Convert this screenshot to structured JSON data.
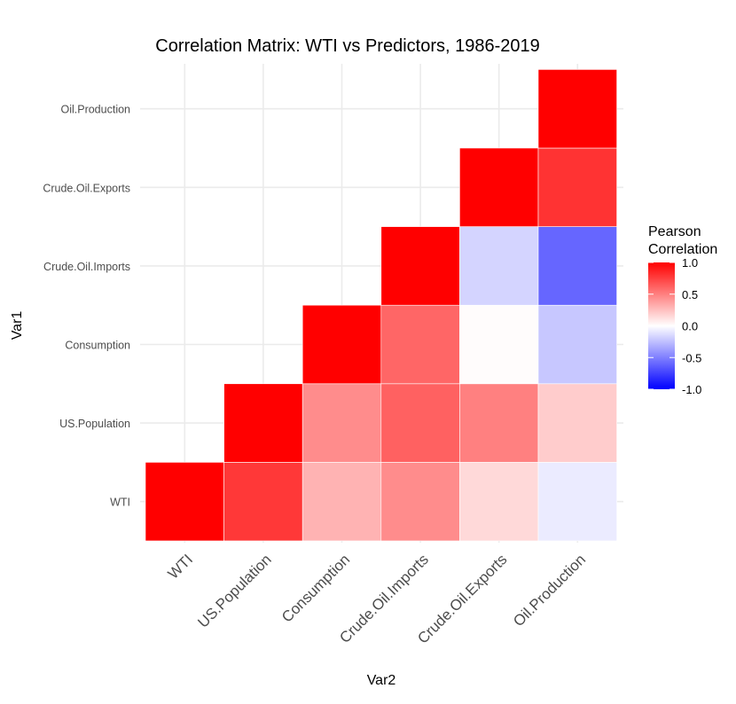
{
  "chart_data": {
    "type": "heatmap",
    "title": "Correlation Matrix: WTI vs Predictors, 1986-2019",
    "xlabel": "Var2",
    "ylabel": "Var1",
    "x_categories": [
      "WTI",
      "US.Population",
      "Consumption",
      "Crude.Oil.Imports",
      "Crude.Oil.Exports",
      "Oil.Production"
    ],
    "y_categories": [
      "WTI",
      "US.Population",
      "Consumption",
      "Crude.Oil.Imports",
      "Crude.Oil.Exports",
      "Oil.Production"
    ],
    "cells": [
      {
        "x": "WTI",
        "y": "WTI",
        "value": 1.0
      },
      {
        "x": "US.Population",
        "y": "WTI",
        "value": 0.78
      },
      {
        "x": "Consumption",
        "y": "WTI",
        "value": 0.3
      },
      {
        "x": "Crude.Oil.Imports",
        "y": "WTI",
        "value": 0.45
      },
      {
        "x": "Crude.Oil.Exports",
        "y": "WTI",
        "value": 0.15
      },
      {
        "x": "Oil.Production",
        "y": "WTI",
        "value": -0.08
      },
      {
        "x": "US.Population",
        "y": "US.Population",
        "value": 1.0
      },
      {
        "x": "Consumption",
        "y": "US.Population",
        "value": 0.45
      },
      {
        "x": "Crude.Oil.Imports",
        "y": "US.Population",
        "value": 0.62
      },
      {
        "x": "Crude.Oil.Exports",
        "y": "US.Population",
        "value": 0.5
      },
      {
        "x": "Oil.Production",
        "y": "US.Population",
        "value": 0.2
      },
      {
        "x": "Consumption",
        "y": "Consumption",
        "value": 1.0
      },
      {
        "x": "Crude.Oil.Imports",
        "y": "Consumption",
        "value": 0.6
      },
      {
        "x": "Crude.Oil.Exports",
        "y": "Consumption",
        "value": 0.01
      },
      {
        "x": "Oil.Production",
        "y": "Consumption",
        "value": -0.22
      },
      {
        "x": "Crude.Oil.Imports",
        "y": "Crude.Oil.Imports",
        "value": 1.0
      },
      {
        "x": "Crude.Oil.Exports",
        "y": "Crude.Oil.Imports",
        "value": -0.17
      },
      {
        "x": "Oil.Production",
        "y": "Crude.Oil.Imports",
        "value": -0.6
      },
      {
        "x": "Crude.Oil.Exports",
        "y": "Crude.Oil.Exports",
        "value": 1.0
      },
      {
        "x": "Oil.Production",
        "y": "Crude.Oil.Exports",
        "value": 0.8
      },
      {
        "x": "Oil.Production",
        "y": "Oil.Production",
        "value": 1.0
      }
    ],
    "legend": {
      "title_lines": [
        "Pearson",
        "Correlation"
      ],
      "placement": "right",
      "ticks": [
        1.0,
        0.5,
        0.0,
        -0.5,
        -1.0
      ],
      "tick_labels": [
        "1.0",
        "0.5",
        "0.0",
        "-0.5",
        "-1.0"
      ],
      "limits": [
        -1,
        1
      ]
    },
    "colors": {
      "low": "#0000ff",
      "mid": "#ffffff",
      "high": "#ff0000",
      "grid": "#ebebeb"
    },
    "grid": true
  }
}
